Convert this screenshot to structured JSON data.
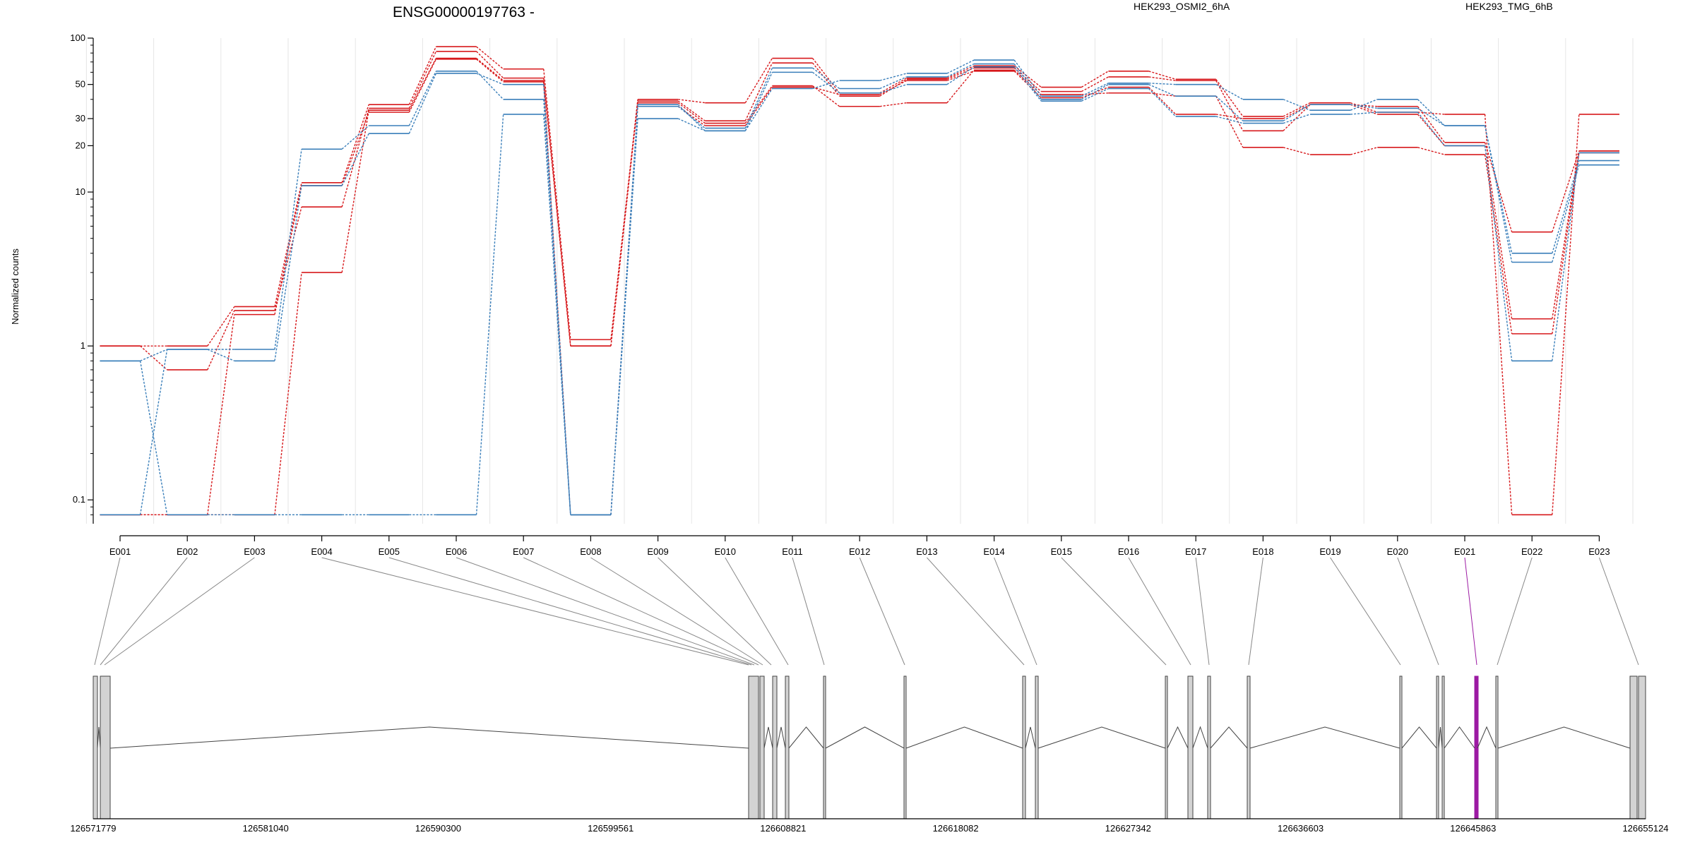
{
  "colors": {
    "osmi": "#d7191c",
    "tmg": "#3a7fba",
    "highlight": "#9c1aa3",
    "grid": "#e6e6e6",
    "exon_fill": "#d3d3d3"
  },
  "header": {
    "title": "ENSG00000197763 -",
    "legend": [
      {
        "label": "HEK293_OSMI2_6hA",
        "color": "#d7191c"
      },
      {
        "label": "HEK293_TMG_6hB",
        "color": "#3a7fba"
      }
    ]
  },
  "chart_data": {
    "type": "line",
    "title": "ENSG00000197763 -",
    "xlabel": "",
    "ylabel": "Normalized counts",
    "yscale": "log",
    "ylim": [
      0.07,
      100
    ],
    "y_ticks": [
      {
        "value": 0.1,
        "label": "0.1"
      },
      {
        "value": 1,
        "label": "1"
      },
      {
        "value": 10,
        "label": "10"
      },
      {
        "value": 20,
        "label": "20"
      },
      {
        "value": 30,
        "label": "30"
      },
      {
        "value": 50,
        "label": "50"
      },
      {
        "value": 100,
        "label": "100"
      }
    ],
    "categories": [
      "E001",
      "E002",
      "E003",
      "E004",
      "E005",
      "E006",
      "E007",
      "E008",
      "E009",
      "E010",
      "E011",
      "E012",
      "E013",
      "E014",
      "E015",
      "E016",
      "E017",
      "E018",
      "E019",
      "E020",
      "E021",
      "E022",
      "E023"
    ],
    "grid": true,
    "legend_position": "top",
    "series": [
      {
        "group": "HEK293_OSMI2_6hA",
        "values": [
          1.0,
          1.0,
          1.8,
          11.5,
          37,
          88,
          63,
          1.1,
          40,
          38,
          74,
          44,
          55,
          66,
          48,
          61,
          54,
          31,
          38,
          33,
          32,
          0.08,
          32
        ]
      },
      {
        "group": "HEK293_OSMI2_6hA",
        "values": [
          1.0,
          0.7,
          1.7,
          8.0,
          35,
          82,
          55,
          1.0,
          39,
          29,
          69,
          42,
          54,
          64,
          45,
          56,
          53,
          25,
          37,
          32,
          20,
          1.5,
          18.5
        ]
      },
      {
        "group": "HEK293_OSMI2_6hA",
        "values": [
          0.08,
          0.08,
          0.08,
          3.0,
          34,
          74,
          53,
          1.0,
          38,
          28,
          49,
          36,
          38,
          62,
          43,
          44,
          42,
          19.5,
          17.5,
          19.5,
          17.5,
          1.2,
          18
        ]
      },
      {
        "group": "HEK293_OSMI2_6hA",
        "values": [
          0.08,
          0.08,
          1.6,
          11,
          33,
          73,
          52,
          0.08,
          36,
          27,
          48,
          43,
          53,
          61,
          41,
          48,
          32,
          30,
          37,
          36,
          21,
          5.5,
          18.5
        ]
      },
      {
        "group": "HEK293_TMG_6hB",
        "values": [
          0.8,
          0.08,
          0.08,
          0.08,
          0.08,
          0.08,
          32,
          0.08,
          30,
          25,
          47,
          53,
          59,
          72,
          42,
          51,
          50,
          40,
          34,
          40,
          27,
          3.5,
          15
        ]
      },
      {
        "group": "HEK293_TMG_6hB",
        "values": [
          0.8,
          0.95,
          0.95,
          19,
          27,
          61,
          40,
          0.08,
          36,
          26,
          64,
          47,
          56,
          68,
          40,
          50,
          42,
          29,
          37,
          35,
          27,
          4.0,
          16
        ]
      },
      {
        "group": "HEK293_TMG_6hB",
        "values": [
          0.08,
          0.95,
          0.8,
          11,
          24,
          59,
          50,
          0.08,
          37,
          25,
          60,
          44,
          50,
          65,
          39,
          47,
          31,
          28,
          32,
          33,
          20,
          0.8,
          18
        ]
      }
    ]
  },
  "gene_model": {
    "coordinate_labels": [
      "126571779",
      "126581040",
      "126590300",
      "126599561",
      "126608821",
      "126618082",
      "126627342",
      "126636603",
      "126645863",
      "126655124"
    ],
    "highlight_exon": "E021"
  }
}
